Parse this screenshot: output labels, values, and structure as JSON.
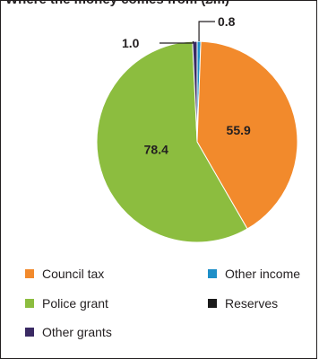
{
  "chart_data": {
    "type": "pie",
    "title": "Where the money comes from (£m)",
    "slices": [
      {
        "label": "Other income",
        "value": 0.8,
        "color": "#1e8fc8"
      },
      {
        "label": "Council tax",
        "value": 55.9,
        "color": "#f28a2c"
      },
      {
        "label": "Police grant",
        "value": 78.4,
        "color": "#8cbd3f"
      },
      {
        "label": "Other grants",
        "value": 1.0,
        "color": "#3a2a63"
      },
      {
        "label": "Reserves",
        "value": 0.0,
        "color": "#1a1a1a"
      }
    ],
    "data_labels": [
      {
        "text": "0.8",
        "for": "Other income"
      },
      {
        "text": "55.9",
        "for": "Council tax"
      },
      {
        "text": "78.4",
        "for": "Police grant"
      },
      {
        "text": "1.0",
        "for": "Other grants"
      }
    ],
    "legend": {
      "placement": "bottom",
      "entries": [
        {
          "label": "Council tax",
          "color": "#f28a2c"
        },
        {
          "label": "Other income",
          "color": "#1e8fc8"
        },
        {
          "label": "Police grant",
          "color": "#8cbd3f"
        },
        {
          "label": "Reserves",
          "color": "#1a1a1a"
        },
        {
          "label": "Other grants",
          "color": "#3a2a63"
        }
      ]
    }
  }
}
